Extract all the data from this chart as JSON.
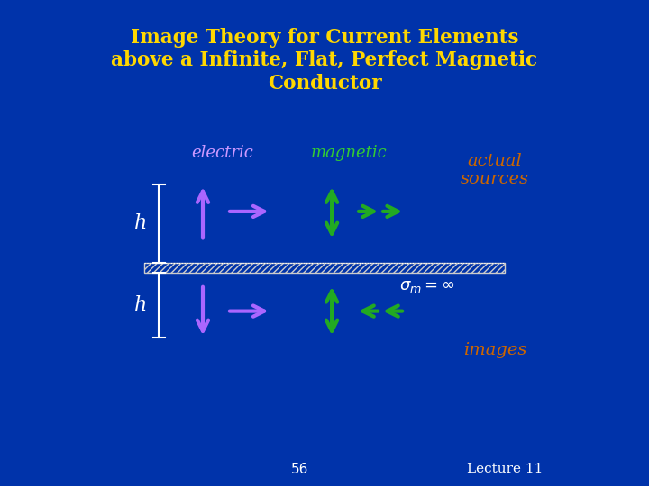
{
  "title": "Image Theory for Current Elements\nabove a Infinite, Flat, Perfect Magnetic\nConductor",
  "title_color": "#FFD700",
  "bg_color": "#0033AA",
  "electric_label": "electric",
  "magnetic_label": "magnetic",
  "actual_sources_label": "actual\nsources",
  "images_label": "images",
  "h_label": "h",
  "lecture_label": "Lecture 11",
  "page_num": "56",
  "electric_color": "#CC99FF",
  "magnetic_color": "#33CC33",
  "label_color": "#CC6600",
  "white": "#FFFFFF",
  "hatch_color": "#CCCCCC",
  "arrow_e_color": "#AA66FF",
  "arrow_m_color": "#22AA22"
}
